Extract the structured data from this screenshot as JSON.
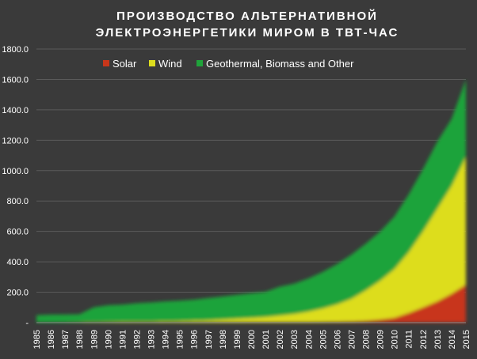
{
  "chart_data": {
    "type": "area",
    "stacked": true,
    "title_lines": [
      "ПРОИЗВОДСТВО АЛЬТЕРНАТИВНОЙ",
      "ЭЛЕКТРОЭНЕРГЕТИКИ МИРОМ В ТВТ-ЧАС"
    ],
    "x": [
      "1985",
      "1986",
      "1987",
      "1988",
      "1989",
      "1990",
      "1991",
      "1992",
      "1993",
      "1994",
      "1995",
      "1996",
      "1997",
      "1998",
      "1999",
      "2000",
      "2001",
      "2002",
      "2003",
      "2004",
      "2005",
      "2006",
      "2007",
      "2008",
      "2009",
      "2010",
      "2011",
      "2012",
      "2013",
      "2014",
      "2015"
    ],
    "y_ticks": [
      "-",
      "200.0",
      "400.0",
      "600.0",
      "800.0",
      "1000.0",
      "1200.0",
      "1400.0",
      "1600.0",
      "1800.0"
    ],
    "ylim": [
      0,
      1800
    ],
    "grid": true,
    "legend_position": "top",
    "series": [
      {
        "name": "Solar",
        "color": "#c8361a",
        "values": [
          0.5,
          0.5,
          0.5,
          0.5,
          0.5,
          0.6,
          0.6,
          0.6,
          0.6,
          0.7,
          0.7,
          0.7,
          0.8,
          0.8,
          0.9,
          1,
          1.2,
          1.5,
          1.9,
          2.5,
          3.5,
          5,
          7,
          12,
          20,
          32,
          63,
          100,
          140,
          190,
          250
        ]
      },
      {
        "name": "Wind",
        "color": "#dddd1e",
        "values": [
          0.1,
          0.3,
          0.6,
          1.5,
          3,
          4,
          4.5,
          5,
          6,
          8,
          9,
          12,
          15,
          20,
          25,
          30,
          36,
          45,
          55,
          70,
          90,
          115,
          150,
          200,
          255,
          320,
          400,
          500,
          610,
          710,
          840
        ]
      },
      {
        "name": "Geothermal, Biomass and Other",
        "color": "#1fa33a",
        "values": [
          48,
          52,
          52,
          53,
          97,
          110,
          113,
          122,
          126,
          131,
          135,
          138,
          146,
          151,
          157,
          162,
          165,
          190,
          199,
          218,
          240,
          265,
          290,
          307,
          323,
          345,
          380,
          410,
          440,
          440,
          510
        ]
      }
    ]
  }
}
